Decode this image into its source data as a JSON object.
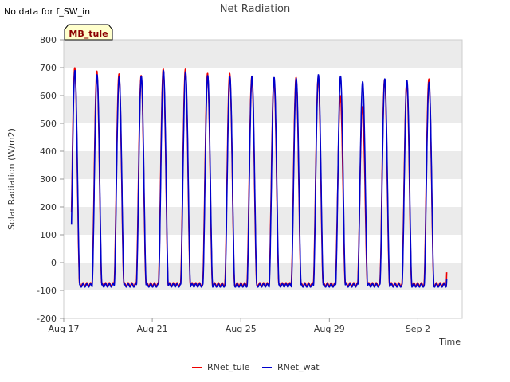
{
  "corner_note": "No data for f_SW_in",
  "badge_label": "MB_tule",
  "colors": {
    "tule": "#ee0000",
    "wat": "#0000cc",
    "band": "#ebebeb",
    "badge_fill": "#ffffcc"
  },
  "chart_data": {
    "type": "line",
    "title": "Net Radiation",
    "xlabel": "Time",
    "ylabel": "Solar Radiation (W/m2)",
    "ylim": [
      -200,
      800
    ],
    "yticks": [
      -200,
      -100,
      0,
      100,
      200,
      300,
      400,
      500,
      600,
      700,
      800
    ],
    "xlim_days": [
      17,
      35
    ],
    "xticks": [
      {
        "day": 17,
        "label": "Aug 17"
      },
      {
        "day": 21,
        "label": "Aug 21"
      },
      {
        "day": 25,
        "label": "Aug 25"
      },
      {
        "day": 29,
        "label": "Aug 29"
      },
      {
        "day": 33,
        "label": "Sep 2"
      }
    ],
    "grid": "horizontal bands",
    "legend_position": "bottom-center",
    "series": [
      {
        "name": "RNet_tule",
        "color": "#ee0000",
        "night_value": -78,
        "daily_peaks": [
          700,
          688,
          678,
          672,
          695,
          695,
          680,
          680,
          668,
          660,
          665,
          665,
          600,
          560,
          658,
          650,
          660
        ]
      },
      {
        "name": "RNet_wat",
        "color": "#0000cc",
        "night_value": -82,
        "daily_peaks": [
          690,
          675,
          668,
          670,
          690,
          685,
          672,
          668,
          670,
          665,
          662,
          675,
          670,
          650,
          660,
          655,
          648
        ]
      }
    ]
  }
}
